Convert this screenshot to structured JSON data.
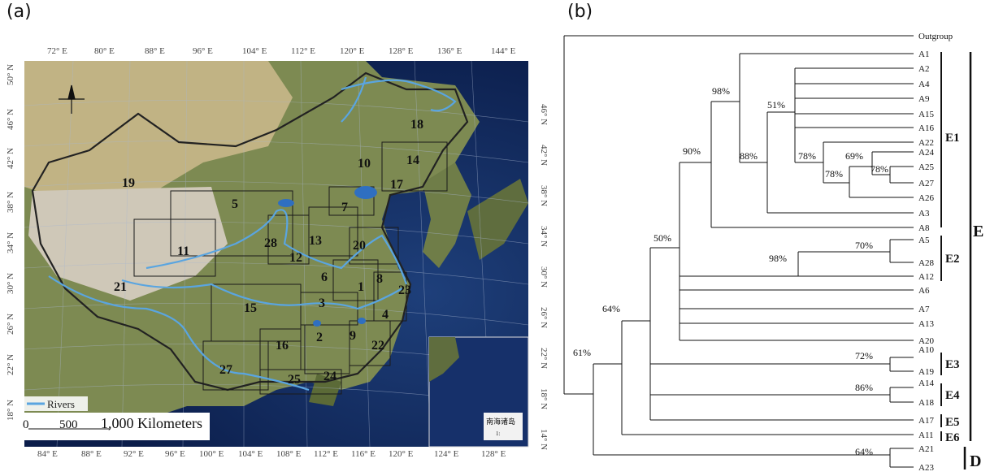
{
  "panels": {
    "a": "(a)",
    "b": "(b)"
  },
  "map": {
    "top_longitudes": [
      "72° E",
      "80° E",
      "88° E",
      "96° E",
      "104° E",
      "112° E",
      "120° E",
      "128° E",
      "136° E",
      "144° E"
    ],
    "bottom_longitudes": [
      "84° E",
      "88° E",
      "92° E",
      "96° E",
      "100° E",
      "104° E",
      "108° E",
      "112° E",
      "116° E",
      "120° E",
      "124° E",
      "128° E"
    ],
    "left_latitudes": [
      "50° N",
      "46° N",
      "42° N",
      "38° N",
      "34° N",
      "30° N",
      "26° N",
      "22° N",
      "18° N"
    ],
    "right_latitudes": [
      "46° N",
      "42° N",
      "38° N",
      "34° N",
      "30° N",
      "26° N",
      "22° N",
      "18° N",
      "14° N"
    ],
    "regions": [
      "1",
      "2",
      "3",
      "4",
      "5",
      "6",
      "7",
      "8",
      "9",
      "10",
      "11",
      "12",
      "13",
      "14",
      "15",
      "16",
      "17",
      "18",
      "19",
      "20",
      "21",
      "22",
      "23",
      "24",
      "25",
      "27",
      "28"
    ],
    "legend_rivers": "Rivers",
    "scale": {
      "zero": "0",
      "mid": "500",
      "end": "1,000 Kilometers"
    },
    "inset_title": "南海诸岛",
    "inset_scale": "1:"
  },
  "tree": {
    "outgroup": "Outgroup",
    "leaves": [
      "A1",
      "A2",
      "A4",
      "A9",
      "A15",
      "A16",
      "A22",
      "A24",
      "A25",
      "A27",
      "A26",
      "A3",
      "A8",
      "A5",
      "A28",
      "A12",
      "A6",
      "A7",
      "A13",
      "A20",
      "A10",
      "A19",
      "A14",
      "A18",
      "A17",
      "A11",
      "A21",
      "A23"
    ],
    "support": {
      "s98a": "98%",
      "s51": "51%",
      "s90": "90%",
      "s88": "88%",
      "s78a": "78%",
      "s69": "69%",
      "s78b": "78%",
      "s78c": "78%",
      "s50": "50%",
      "s98b": "98%",
      "s70": "70%",
      "s64a": "64%",
      "s72": "72%",
      "s61": "61%",
      "s86": "86%",
      "s64b": "64%"
    },
    "clades": {
      "E1": "E1",
      "E2": "E2",
      "E3": "E3",
      "E4": "E4",
      "E5": "E5",
      "E6": "E6",
      "E": "E",
      "D": "D"
    }
  }
}
